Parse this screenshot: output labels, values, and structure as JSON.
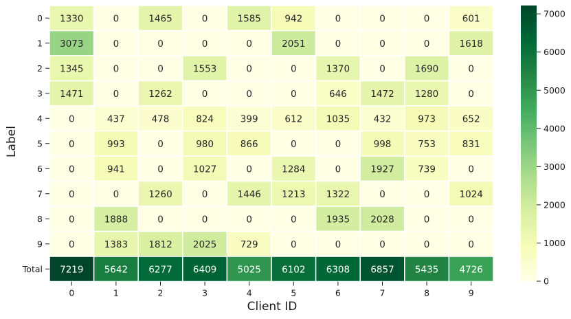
{
  "chart_data": {
    "type": "heatmap",
    "title": "",
    "xlabel": "Client ID",
    "ylabel": "Label",
    "x_categories": [
      "0",
      "1",
      "2",
      "3",
      "4",
      "5",
      "6",
      "7",
      "8",
      "9"
    ],
    "y_categories": [
      "0",
      "1",
      "2",
      "3",
      "4",
      "5",
      "6",
      "7",
      "8",
      "9",
      "Total"
    ],
    "values": [
      [
        1330,
        0,
        1465,
        0,
        1585,
        942,
        0,
        0,
        0,
        601
      ],
      [
        3073,
        0,
        0,
        0,
        0,
        2051,
        0,
        0,
        0,
        1618
      ],
      [
        1345,
        0,
        0,
        1553,
        0,
        0,
        1370,
        0,
        1690,
        0
      ],
      [
        1471,
        0,
        1262,
        0,
        0,
        0,
        646,
        1472,
        1280,
        0
      ],
      [
        0,
        437,
        478,
        824,
        399,
        612,
        1035,
        432,
        973,
        652
      ],
      [
        0,
        993,
        0,
        980,
        866,
        0,
        0,
        998,
        753,
        831
      ],
      [
        0,
        941,
        0,
        1027,
        0,
        1284,
        0,
        1927,
        739,
        0
      ],
      [
        0,
        0,
        1260,
        0,
        1446,
        1213,
        1322,
        0,
        0,
        1024
      ],
      [
        0,
        1888,
        0,
        0,
        0,
        0,
        1935,
        2028,
        0,
        0
      ],
      [
        0,
        1383,
        1812,
        2025,
        729,
        0,
        0,
        0,
        0,
        0
      ],
      [
        7219,
        5642,
        6277,
        6409,
        5025,
        6102,
        6308,
        6857,
        5435,
        4726
      ]
    ],
    "colorbar": {
      "min": 0,
      "max": 7219,
      "ticks": [
        0,
        1000,
        2000,
        3000,
        4000,
        5000,
        6000,
        7000
      ],
      "colormap": "YlGn"
    },
    "annotations": true,
    "grid": false
  }
}
